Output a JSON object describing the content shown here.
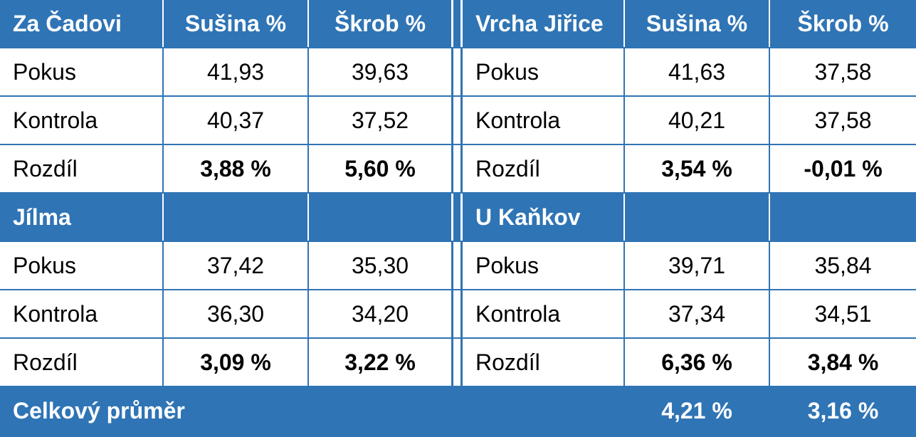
{
  "table": {
    "rows": [
      {
        "kind": "head",
        "left": [
          "Za Čadovi",
          "Sušina %",
          "Škrob %"
        ],
        "right": [
          "Vrcha Jiřice",
          "Sušina %",
          "Škrob %"
        ]
      },
      {
        "kind": "body",
        "left": [
          "Pokus",
          "41,93",
          "39,63"
        ],
        "right": [
          "Pokus",
          "41,63",
          "37,58"
        ]
      },
      {
        "kind": "body",
        "left": [
          "Kontrola",
          "40,37",
          "37,52"
        ],
        "right": [
          "Kontrola",
          "40,21",
          "37,58"
        ]
      },
      {
        "kind": "diff",
        "left": [
          "Rozdíl",
          "3,88 %",
          "5,60 %"
        ],
        "right": [
          "Rozdíl",
          "3,54 %",
          "-0,01 %"
        ]
      },
      {
        "kind": "head",
        "left": [
          "Jílma"
        ],
        "right": [
          "U Kaňkov"
        ]
      },
      {
        "kind": "body",
        "left": [
          "Pokus",
          "37,42",
          "35,30"
        ],
        "right": [
          "Pokus",
          "39,71",
          "35,84"
        ]
      },
      {
        "kind": "body",
        "left": [
          "Kontrola",
          "36,30",
          "34,20"
        ],
        "right": [
          "Kontrola",
          "37,34",
          "34,51"
        ]
      },
      {
        "kind": "diff",
        "left": [
          "Rozdíl",
          "3,09 %",
          "3,22 %"
        ],
        "right": [
          "Rozdíl",
          "6,36 %",
          "3,84 %"
        ]
      }
    ],
    "footer": {
      "label": "Celkový průměr",
      "values": [
        "4,21 %",
        "3,16 %"
      ]
    }
  }
}
